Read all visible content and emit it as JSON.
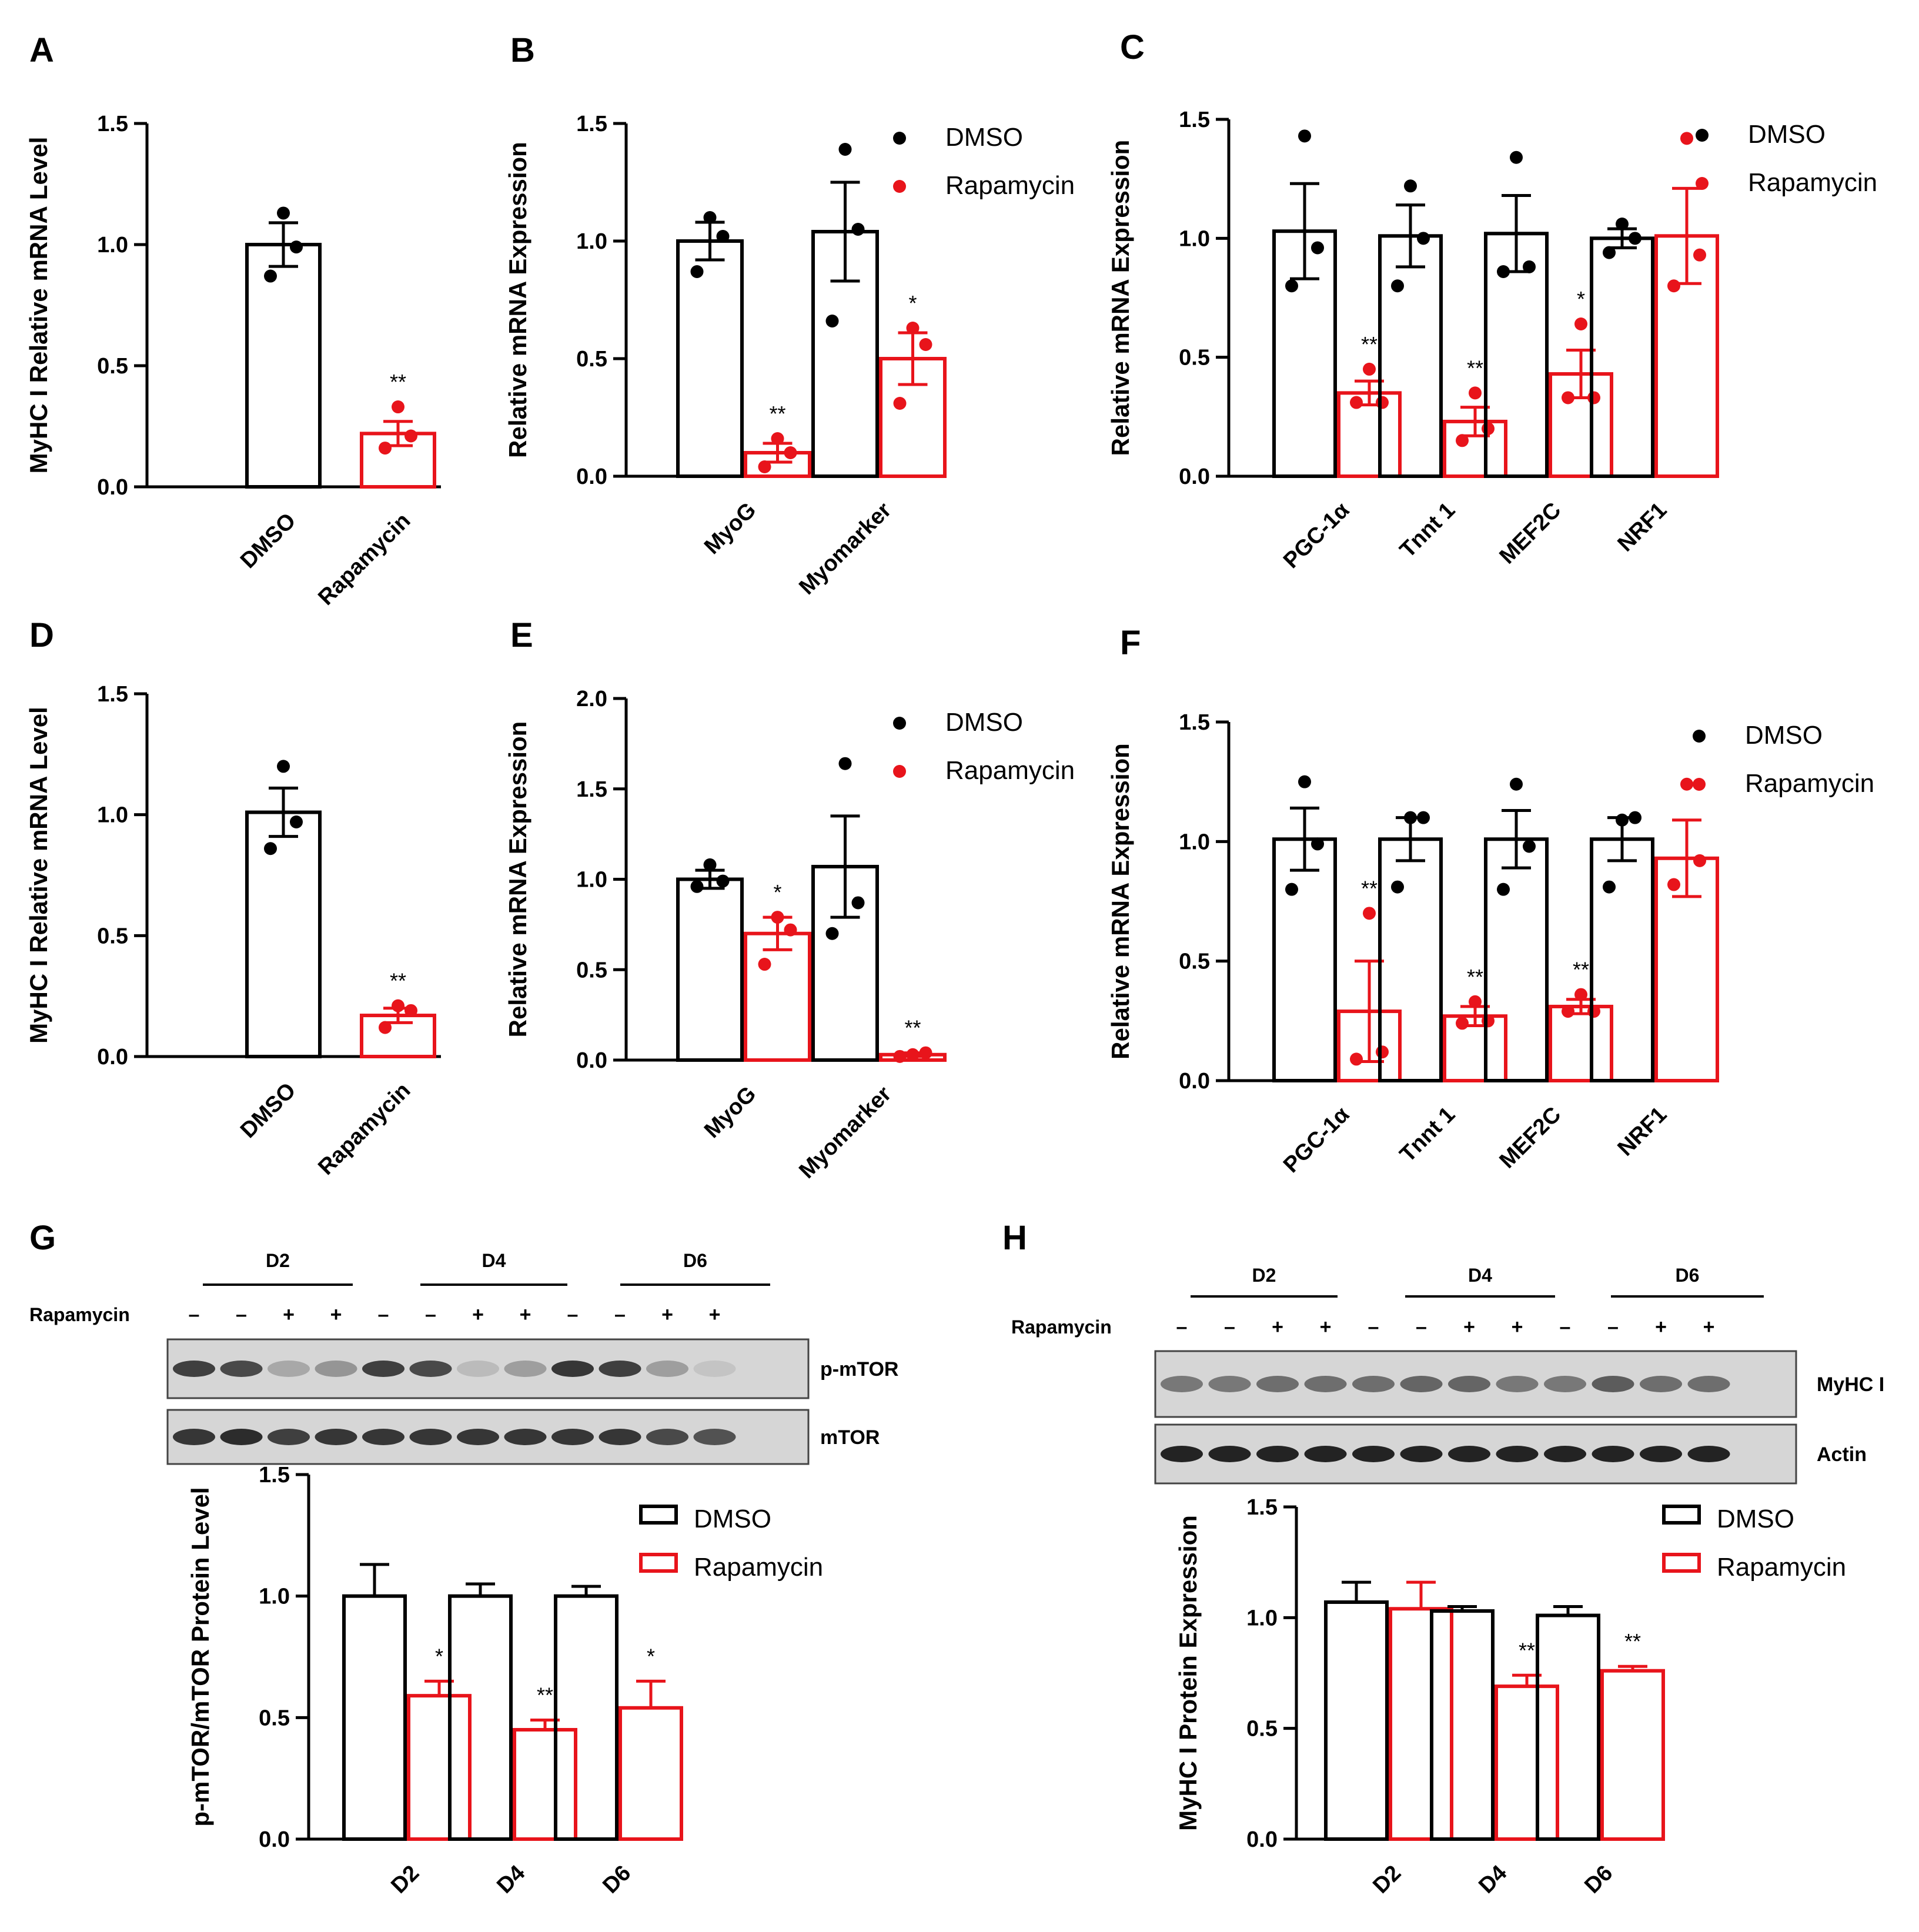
{
  "colors": {
    "dmso": "#000000",
    "rapamycin": "#e8141b",
    "axis": "#000000",
    "blot_bg": "#d6d6d6",
    "band": "#2a2a2a"
  },
  "chart_data": [
    {
      "panel": "A",
      "type": "bar",
      "ylabel": "MyHC I Relative mRNA Level",
      "xlabel": "",
      "ylim": [
        0,
        1.5
      ],
      "yticks": [
        "0.0",
        "0.5",
        "1.0",
        "1.5"
      ],
      "categories": [
        "DMSO",
        "Rapamycin"
      ],
      "series": [
        {
          "name": "DMSO",
          "color": "#000000",
          "values": [
            1.0,
            null
          ],
          "errors": [
            0.09,
            null
          ],
          "points": [
            [
              1.13,
              0.87,
              0.99
            ],
            null
          ]
        },
        {
          "name": "Rapamycin",
          "color": "#e8141b",
          "values": [
            null,
            0.22
          ],
          "errors": [
            null,
            0.05
          ],
          "points": [
            null,
            [
              0.33,
              0.16,
              0.21
            ]
          ]
        }
      ],
      "annotations": [
        {
          "category": 1,
          "series": 1,
          "text": "**"
        }
      ],
      "legend": null
    },
    {
      "panel": "B",
      "type": "bar",
      "ylabel": "Relative mRNA Expression",
      "xlabel": "",
      "ylim": [
        0,
        1.5
      ],
      "yticks": [
        "0.0",
        "0.5",
        "1.0",
        "1.5"
      ],
      "categories": [
        "MyoG",
        "Myomarker"
      ],
      "series": [
        {
          "name": "DMSO",
          "color": "#000000",
          "values": [
            1.0,
            1.04
          ],
          "errors": [
            0.08,
            0.21
          ],
          "points": [
            [
              1.1,
              0.87,
              1.02
            ],
            [
              1.39,
              0.66,
              1.05
            ]
          ]
        },
        {
          "name": "Rapamycin",
          "color": "#e8141b",
          "values": [
            0.1,
            0.5
          ],
          "errors": [
            0.04,
            0.11
          ],
          "points": [
            [
              0.16,
              0.04,
              0.1
            ],
            [
              0.63,
              0.31,
              0.56
            ]
          ]
        }
      ],
      "annotations": [
        {
          "category": 0,
          "series": 1,
          "text": "**"
        },
        {
          "category": 1,
          "series": 1,
          "text": "*"
        }
      ],
      "legend": {
        "style": "dot",
        "entries": [
          "DMSO",
          "Rapamycin"
        ]
      }
    },
    {
      "panel": "C",
      "type": "bar",
      "ylabel": "Relative mRNA Expression",
      "xlabel": "",
      "ylim": [
        0,
        1.5
      ],
      "yticks": [
        "0.0",
        "0.5",
        "1.0",
        "1.5"
      ],
      "categories": [
        "PGC-1α",
        "Tnnt 1",
        "MEF2C",
        "NRF1"
      ],
      "series": [
        {
          "name": "DMSO",
          "color": "#000000",
          "values": [
            1.03,
            1.01,
            1.02,
            1.0
          ],
          "errors": [
            0.2,
            0.13,
            0.16,
            0.04
          ],
          "points": [
            [
              1.43,
              0.8,
              0.96
            ],
            [
              1.22,
              0.8,
              1.0
            ],
            [
              1.34,
              0.86,
              0.88
            ],
            [
              1.06,
              0.94,
              1.0
            ]
          ]
        },
        {
          "name": "Rapamycin",
          "color": "#e8141b",
          "values": [
            0.35,
            0.23,
            0.43,
            1.01
          ],
          "errors": [
            0.05,
            0.06,
            0.1,
            0.2
          ],
          "points": [
            [
              0.45,
              0.31,
              0.31
            ],
            [
              0.35,
              0.15,
              0.2
            ],
            [
              0.64,
              0.33,
              0.33
            ],
            [
              1.42,
              0.8,
              0.93
            ]
          ]
        }
      ],
      "annotations": [
        {
          "category": 0,
          "series": 1,
          "text": "**"
        },
        {
          "category": 1,
          "series": 1,
          "text": "**"
        },
        {
          "category": 2,
          "series": 1,
          "text": "*"
        }
      ],
      "legend": {
        "style": "dot",
        "entries": [
          "DMSO",
          "Rapamycin"
        ]
      }
    },
    {
      "panel": "D",
      "type": "bar",
      "ylabel": "MyHC I Relative mRNA Level",
      "xlabel": "",
      "ylim": [
        0,
        1.5
      ],
      "yticks": [
        "0.0",
        "0.5",
        "1.0",
        "1.5"
      ],
      "categories": [
        "DMSO",
        "Rapamycin"
      ],
      "series": [
        {
          "name": "DMSO",
          "color": "#000000",
          "values": [
            1.01,
            null
          ],
          "errors": [
            0.1,
            null
          ],
          "points": [
            [
              1.2,
              0.86,
              0.97
            ],
            null
          ]
        },
        {
          "name": "Rapamycin",
          "color": "#e8141b",
          "values": [
            null,
            0.17
          ],
          "errors": [
            null,
            0.03
          ],
          "points": [
            null,
            [
              0.21,
              0.12,
              0.19
            ]
          ]
        }
      ],
      "annotations": [
        {
          "category": 1,
          "series": 1,
          "text": "**"
        }
      ],
      "legend": null
    },
    {
      "panel": "E",
      "type": "bar",
      "ylabel": "Relative mRNA Expression",
      "xlabel": "",
      "ylim": [
        0,
        2.0
      ],
      "yticks": [
        "0.0",
        "0.5",
        "1.0",
        "1.5",
        "2.0"
      ],
      "categories": [
        "MyoG",
        "Myomarker"
      ],
      "series": [
        {
          "name": "DMSO",
          "color": "#000000",
          "values": [
            1.0,
            1.07
          ],
          "errors": [
            0.05,
            0.28
          ],
          "points": [
            [
              1.08,
              0.96,
              0.99
            ],
            [
              1.64,
              0.7,
              0.87
            ]
          ]
        },
        {
          "name": "Rapamycin",
          "color": "#e8141b",
          "values": [
            0.7,
            0.03
          ],
          "errors": [
            0.09,
            0.01
          ],
          "points": [
            [
              0.79,
              0.53,
              0.72
            ],
            [
              0.03,
              0.02,
              0.04
            ]
          ]
        }
      ],
      "annotations": [
        {
          "category": 0,
          "series": 1,
          "text": "*"
        },
        {
          "category": 1,
          "series": 1,
          "text": "**"
        }
      ],
      "legend": {
        "style": "dot",
        "entries": [
          "DMSO",
          "Rapamycin"
        ]
      }
    },
    {
      "panel": "F",
      "type": "bar",
      "ylabel": "Relative mRNA Expression",
      "xlabel": "",
      "ylim": [
        0,
        1.5
      ],
      "yticks": [
        "0.0",
        "0.5",
        "1.0",
        "1.5"
      ],
      "categories": [
        "PGC-1α",
        "Tnnt 1",
        "MEF2C",
        "NRF1"
      ],
      "series": [
        {
          "name": "DMSO",
          "color": "#000000",
          "values": [
            1.01,
            1.01,
            1.01,
            1.01
          ],
          "errors": [
            0.13,
            0.09,
            0.12,
            0.09
          ],
          "points": [
            [
              1.25,
              0.8,
              0.99
            ],
            [
              1.1,
              0.81,
              1.1
            ],
            [
              1.24,
              0.8,
              0.98
            ],
            [
              1.09,
              0.81,
              1.1
            ]
          ]
        },
        {
          "name": "Rapamycin",
          "color": "#e8141b",
          "values": [
            0.29,
            0.27,
            0.31,
            0.93
          ],
          "errors": [
            0.21,
            0.04,
            0.03,
            0.16
          ],
          "points": [
            [
              0.7,
              0.09,
              0.12
            ],
            [
              0.33,
              0.24,
              0.25
            ],
            [
              0.36,
              0.29,
              0.29
            ],
            [
              1.24,
              0.82,
              0.92
            ]
          ]
        }
      ],
      "annotations": [
        {
          "category": 0,
          "series": 1,
          "text": "**"
        },
        {
          "category": 1,
          "series": 1,
          "text": "**"
        },
        {
          "category": 2,
          "series": 1,
          "text": "**"
        }
      ],
      "legend": {
        "style": "dot",
        "entries": [
          "DMSO",
          "Rapamycin"
        ]
      }
    },
    {
      "panel": "G",
      "type": "bar",
      "ylabel": "p-mTOR/mTOR Protein Level",
      "xlabel": "",
      "ylim": [
        0,
        1.5
      ],
      "yticks": [
        "0.0",
        "0.5",
        "1.0",
        "1.5"
      ],
      "categories": [
        "D2",
        "D4",
        "D6"
      ],
      "series": [
        {
          "name": "DMSO",
          "color": "#000000",
          "values": [
            1.0,
            1.0,
            1.0
          ],
          "errors": [
            0.13,
            0.05,
            0.04
          ]
        },
        {
          "name": "Rapamycin",
          "color": "#e8141b",
          "values": [
            0.59,
            0.45,
            0.54
          ],
          "errors": [
            0.06,
            0.04,
            0.11
          ]
        }
      ],
      "annotations": [
        {
          "category": 0,
          "series": 1,
          "text": "*"
        },
        {
          "category": 1,
          "series": 1,
          "text": "**"
        },
        {
          "category": 2,
          "series": 1,
          "text": "*"
        }
      ],
      "legend": {
        "style": "box",
        "entries": [
          "DMSO",
          "Rapamycin"
        ]
      }
    },
    {
      "panel": "H",
      "type": "bar",
      "ylabel": "MyHC I Protein Expression",
      "xlabel": "",
      "ylim": [
        0,
        1.5
      ],
      "yticks": [
        "0.0",
        "0.5",
        "1.0",
        "1.5"
      ],
      "categories": [
        "D2",
        "D4",
        "D6"
      ],
      "series": [
        {
          "name": "DMSO",
          "color": "#000000",
          "values": [
            1.07,
            1.03,
            1.01
          ],
          "errors": [
            0.09,
            0.02,
            0.04
          ]
        },
        {
          "name": "Rapamycin",
          "color": "#e8141b",
          "values": [
            1.04,
            0.69,
            0.76
          ],
          "errors": [
            0.12,
            0.05,
            0.02
          ]
        }
      ],
      "annotations": [
        {
          "category": 1,
          "series": 1,
          "text": "**"
        },
        {
          "category": 2,
          "series": 1,
          "text": "**"
        }
      ],
      "legend": {
        "style": "box",
        "entries": [
          "DMSO",
          "Rapamycin"
        ]
      }
    }
  ],
  "blots": [
    {
      "panel": "G",
      "groups": [
        "D2",
        "D4",
        "D6"
      ],
      "treatment_label": "Rapamycin",
      "lane_signs": [
        "–",
        "–",
        "+",
        "+",
        "–",
        "–",
        "+",
        "+",
        "–",
        "–",
        "+",
        "+"
      ],
      "rows": [
        {
          "label": "p-mTOR",
          "intensities": [
            0.8,
            0.75,
            0.25,
            0.35,
            0.8,
            0.75,
            0.15,
            0.3,
            0.85,
            0.8,
            0.3,
            0.1
          ]
        },
        {
          "label": "mTOR",
          "intensities": [
            0.85,
            0.9,
            0.8,
            0.85,
            0.85,
            0.85,
            0.85,
            0.85,
            0.85,
            0.85,
            0.75,
            0.7
          ]
        }
      ]
    },
    {
      "panel": "H",
      "groups": [
        "D2",
        "D4",
        "D6"
      ],
      "treatment_label": "Rapamycin",
      "lane_signs": [
        "–",
        "–",
        "+",
        "+",
        "–",
        "–",
        "+",
        "+",
        "–",
        "–",
        "+",
        "+"
      ],
      "rows": [
        {
          "label": "MyHC I",
          "intensities": [
            0.5,
            0.5,
            0.55,
            0.55,
            0.55,
            0.6,
            0.6,
            0.5,
            0.5,
            0.65,
            0.55,
            0.55
          ]
        },
        {
          "label": "Actin",
          "intensities": [
            0.95,
            0.95,
            0.95,
            0.95,
            0.95,
            0.95,
            0.95,
            0.95,
            0.95,
            0.95,
            0.95,
            0.95
          ]
        }
      ]
    }
  ]
}
